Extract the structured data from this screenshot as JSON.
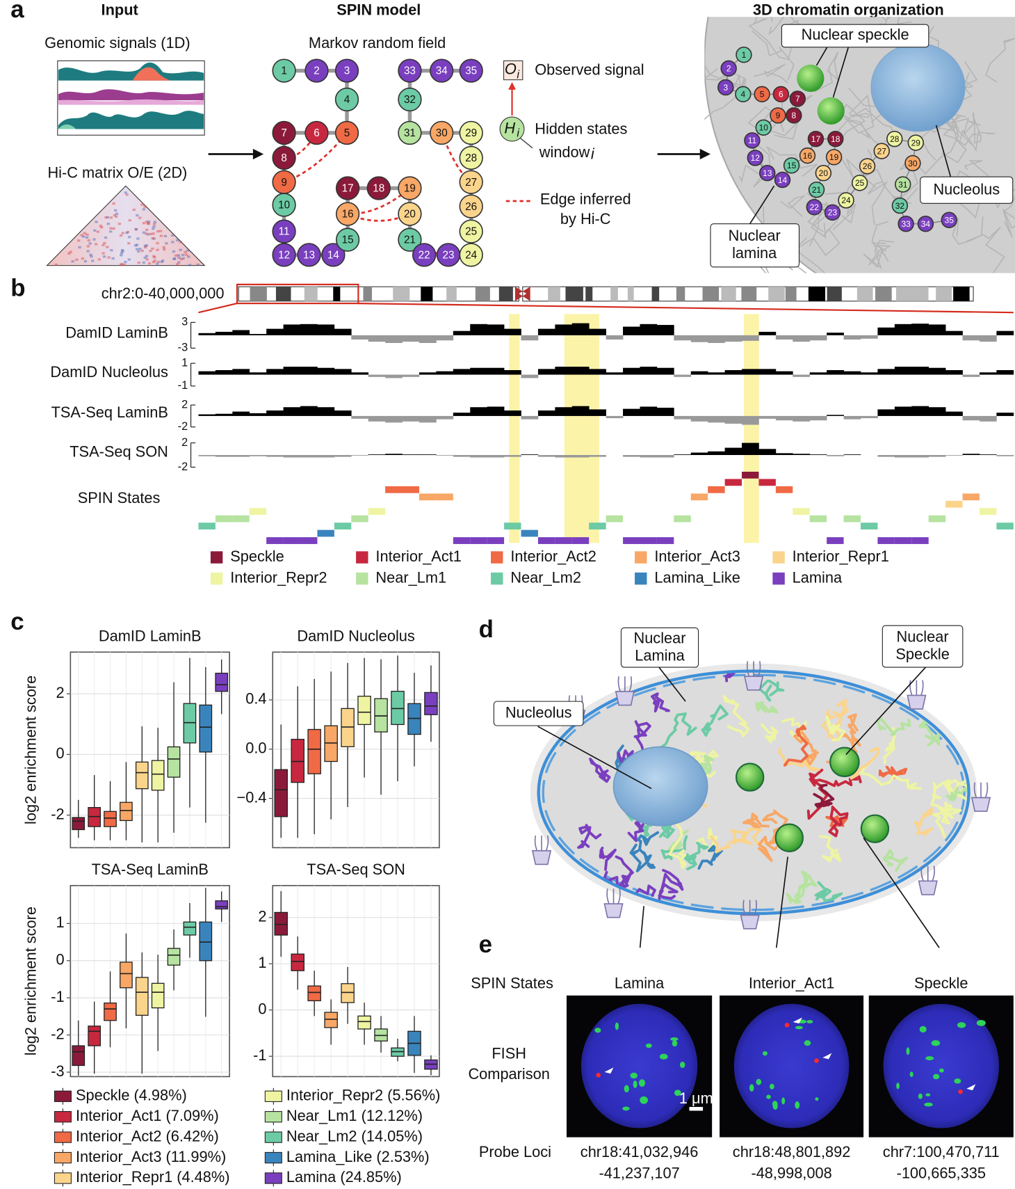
{
  "panel_labels": {
    "a": "a",
    "b": "b",
    "c": "c",
    "d": "d",
    "e": "e"
  },
  "panel_a": {
    "input_title": "Input",
    "genomic_signals": "Genomic signals (1D)",
    "hic_matrix": "Hi-C matrix O/E (2D)",
    "model_title": "SPIN model",
    "model_subtitle": "Markov random field",
    "observed_symbol": "O",
    "hidden_symbol": "H",
    "index_symbol": "i",
    "observed_label": "Observed signal",
    "hidden_label": "Hidden states",
    "window_label": "window",
    "edge_label": [
      "Edge inferred",
      "by Hi-C"
    ],
    "organization_title": "3D chromatin organization",
    "speckle_label": "Nuclear speckle",
    "nucleolus_label": "Nucleolus",
    "lamina_label": [
      "Nuclear",
      "lamina"
    ],
    "nodes": [
      {
        "label": 1,
        "color": "#6ccba5"
      },
      {
        "label": 2,
        "color": "#7a3fbf"
      },
      {
        "label": 3,
        "color": "#7a3fbf"
      },
      {
        "label": 4,
        "color": "#6ccba5"
      },
      {
        "label": 5,
        "color": "#ef6a45"
      },
      {
        "label": 6,
        "color": "#c8283f"
      },
      {
        "label": 7,
        "color": "#8b1a3a"
      },
      {
        "label": 8,
        "color": "#8b1a3a"
      },
      {
        "label": 9,
        "color": "#ef6a45"
      },
      {
        "label": 10,
        "color": "#6ccba5"
      },
      {
        "label": 11,
        "color": "#7a3fbf"
      },
      {
        "label": 12,
        "color": "#7a3fbf"
      },
      {
        "label": 13,
        "color": "#7a3fbf"
      },
      {
        "label": 14,
        "color": "#7a3fbf"
      },
      {
        "label": 15,
        "color": "#6ccba5"
      },
      {
        "label": 16,
        "color": "#f8a766"
      },
      {
        "label": 17,
        "color": "#8b1a3a"
      },
      {
        "label": 18,
        "color": "#8b1a3a"
      },
      {
        "label": 19,
        "color": "#f8a766"
      },
      {
        "label": 20,
        "color": "#fbd48c"
      },
      {
        "label": 21,
        "color": "#6ccba5"
      },
      {
        "label": 22,
        "color": "#7a3fbf"
      },
      {
        "label": 23,
        "color": "#7a3fbf"
      },
      {
        "label": 24,
        "color": "#eef4a2"
      },
      {
        "label": 25,
        "color": "#eef4a2"
      },
      {
        "label": 26,
        "color": "#fbd48c"
      },
      {
        "label": 27,
        "color": "#fbd48c"
      },
      {
        "label": 28,
        "color": "#eef4a2"
      },
      {
        "label": 29,
        "color": "#eef4a2"
      },
      {
        "label": 30,
        "color": "#f8a766"
      },
      {
        "label": 31,
        "color": "#b6e3a0"
      },
      {
        "label": 32,
        "color": "#6ccba5"
      },
      {
        "label": 33,
        "color": "#7a3fbf"
      },
      {
        "label": 34,
        "color": "#7a3fbf"
      },
      {
        "label": 35,
        "color": "#7a3fbf"
      }
    ]
  },
  "panel_b": {
    "region": "chr2:0-40,000,000",
    "states_label": "SPIN States",
    "states": [
      7,
      6,
      6,
      5,
      9,
      9,
      9,
      8,
      7,
      6,
      5,
      2,
      2,
      3,
      3,
      9,
      9,
      9,
      7,
      8,
      9,
      9,
      9,
      7,
      6,
      9,
      9,
      9,
      6,
      3,
      2,
      1,
      0,
      1,
      2,
      5,
      6,
      9,
      6,
      7,
      9,
      9,
      9,
      6,
      4,
      3,
      5,
      7
    ],
    "legend": [
      {
        "name": "Speckle",
        "color": "#8b1a3a"
      },
      {
        "name": "Interior_Act1",
        "color": "#c8283f"
      },
      {
        "name": "Interior_Act2",
        "color": "#ef6a45"
      },
      {
        "name": "Interior_Act3",
        "color": "#f8a766"
      },
      {
        "name": "Interior_Repr1",
        "color": "#fbd48c"
      },
      {
        "name": "Interior_Repr2",
        "color": "#eef4a2"
      },
      {
        "name": "Near_Lm1",
        "color": "#b6e3a0"
      },
      {
        "name": "Near_Lm2",
        "color": "#6ccba5"
      },
      {
        "name": "Lamina_Like",
        "color": "#3a84bd"
      },
      {
        "name": "Lamina",
        "color": "#7a3fbf"
      }
    ]
  },
  "chart_data": [
    {
      "type": "area",
      "title": "DamID LaminB",
      "ylim": [
        -3,
        3
      ],
      "yticks": [
        3,
        -3
      ],
      "pos_color": "#000000",
      "neg_color": "#999999",
      "values": [
        0.5,
        0.8,
        1.2,
        0.3,
        1.5,
        2.5,
        2.6,
        2.5,
        1.5,
        -1.0,
        -1.5,
        -1.8,
        -1.5,
        -1.8,
        -1.2,
        1.0,
        2.6,
        2.5,
        1.5,
        -1.2,
        1.5,
        2.5,
        2.8,
        1.5,
        -1.0,
        2.0,
        2.6,
        2.4,
        -1.2,
        -1.6,
        -1.8,
        -1.5,
        -1.3,
        0.8,
        -1.0,
        -1.5,
        -1.2,
        0.6,
        -1.0,
        -0.8,
        1.8,
        2.6,
        2.7,
        2.5,
        1.0,
        -1.2,
        -1.5,
        1.0
      ]
    },
    {
      "type": "area",
      "title": "DamID Nucleolus",
      "ylim": [
        -1,
        1
      ],
      "yticks": [
        1,
        -1
      ],
      "pos_color": "#000000",
      "neg_color": "#999999",
      "values": [
        0.3,
        0.4,
        0.5,
        0.2,
        0.5,
        0.7,
        0.7,
        0.6,
        0.5,
        0.2,
        -0.2,
        -0.3,
        -0.2,
        0.2,
        0.3,
        0.5,
        0.6,
        0.6,
        0.4,
        -0.3,
        0.5,
        0.7,
        0.7,
        0.5,
        0.2,
        0.6,
        0.7,
        0.6,
        -0.2,
        0.3,
        0.2,
        0.4,
        0.5,
        0.5,
        0.3,
        -0.2,
        0.2,
        0.4,
        0.3,
        0.2,
        0.5,
        0.7,
        0.7,
        0.6,
        0.4,
        -0.2,
        0.2,
        0.4
      ]
    },
    {
      "type": "area",
      "title": "TSA-Seq LaminB",
      "ylim": [
        -2,
        2
      ],
      "yticks": [
        2,
        -2
      ],
      "pos_color": "#000000",
      "neg_color": "#999999",
      "values": [
        0.3,
        0.4,
        0.8,
        0.5,
        1.0,
        1.6,
        1.8,
        1.6,
        1.0,
        -0.5,
        -1.0,
        -1.2,
        -1.0,
        -1.2,
        -0.6,
        0.6,
        1.6,
        1.7,
        1.0,
        -0.6,
        1.0,
        1.6,
        1.8,
        1.2,
        -0.4,
        1.3,
        1.7,
        1.5,
        -0.6,
        -1.0,
        -1.2,
        -1.4,
        -1.6,
        -0.5,
        -0.8,
        -1.0,
        -0.8,
        0.2,
        -0.6,
        -0.4,
        1.2,
        1.7,
        1.8,
        1.6,
        0.8,
        -0.8,
        -1.0,
        0.6
      ]
    },
    {
      "type": "area",
      "title": "TSA-Seq SON",
      "ylim": [
        -2,
        2
      ],
      "yticks": [
        2,
        -2
      ],
      "pos_color": "#000000",
      "neg_color": "#999999",
      "values": [
        -0.2,
        -0.3,
        -0.3,
        -0.2,
        -0.3,
        -0.4,
        -0.4,
        -0.4,
        -0.3,
        -0.1,
        0.1,
        0.2,
        0.1,
        0.1,
        -0.1,
        -0.3,
        -0.4,
        -0.4,
        -0.3,
        0.1,
        -0.3,
        -0.4,
        -0.4,
        -0.3,
        0.0,
        -0.3,
        -0.4,
        -0.4,
        0.1,
        0.4,
        0.6,
        1.2,
        2.0,
        1.0,
        0.3,
        0.2,
        0.1,
        -0.2,
        0.1,
        0.0,
        -0.3,
        -0.4,
        -0.4,
        -0.3,
        -0.1,
        0.2,
        0.1,
        -0.2
      ]
    },
    {
      "type": "box",
      "title": "DamID LaminB",
      "ylabel": "log2 enrichment score",
      "ylim": [
        -3.075,
        3.375
      ],
      "yticks": [
        -2,
        0,
        2
      ],
      "grid": true,
      "low": [
        -2.75,
        -2.83,
        -2.83,
        -2.83,
        -2.9,
        -2.9,
        -2.58,
        -1.75,
        -2.25,
        1.33
      ],
      "q1": [
        -2.48,
        -2.38,
        -2.38,
        -2.18,
        -1.13,
        -1.18,
        -0.75,
        0.38,
        0.08,
        2.08
      ],
      "median": [
        -2.2,
        -2.05,
        -2.1,
        -1.85,
        -0.6,
        -0.65,
        -0.15,
        1.05,
        0.9,
        2.3
      ],
      "q3": [
        -2.08,
        -1.75,
        -1.88,
        -1.58,
        -0.25,
        -0.2,
        0.25,
        1.68,
        1.63,
        2.68
      ],
      "high": [
        -1.5,
        -0.68,
        -0.88,
        -0.25,
        0.93,
        0.88,
        2.38,
        3.18,
        2.88,
        3.13
      ]
    },
    {
      "type": "box",
      "title": "DamID Nucleolus",
      "ylim": [
        -0.8,
        0.788
      ],
      "yticks": [
        {
          "value": -0.4,
          "label": "−0.4"
        },
        {
          "value": 0,
          "label": "0.0"
        },
        0.4
      ],
      "grid": true,
      "low": [
        -0.72,
        -0.72,
        -0.69,
        -0.57,
        -0.47,
        -0.23,
        -0.37,
        -0.26,
        -0.14,
        0.06
      ],
      "q1": [
        -0.548,
        -0.27,
        -0.2,
        -0.1,
        0.02,
        0.2,
        0.14,
        0.2,
        0.12,
        0.28
      ],
      "median": [
        -0.33,
        -0.1,
        0.0,
        0.05,
        0.18,
        0.3,
        0.27,
        0.33,
        0.25,
        0.35
      ],
      "q3": [
        -0.166,
        0.08,
        0.16,
        0.19,
        0.33,
        0.43,
        0.41,
        0.47,
        0.37,
        0.46
      ],
      "high": [
        0.2,
        0.51,
        0.57,
        0.63,
        0.7,
        0.74,
        0.73,
        0.76,
        0.62,
        0.68
      ]
    },
    {
      "type": "box",
      "title": "TSA-Seq LaminB",
      "ylabel": "log2 enrichment score",
      "ylim": [
        -3.12,
        2.02
      ],
      "yticks": [
        -3,
        -2,
        -1,
        0,
        1
      ],
      "grid": true,
      "low": [
        -3.1,
        -3.04,
        -2.33,
        -1.82,
        -3.04,
        -2.43,
        -0.8,
        0.08,
        -1.51,
        1.04
      ],
      "q1": [
        -2.82,
        -2.29,
        -1.61,
        -0.73,
        -1.47,
        -1.27,
        -0.12,
        0.69,
        0,
        1.39
      ],
      "median": [
        -2.45,
        -1.9,
        -1.3,
        -0.35,
        -0.85,
        -0.85,
        0.15,
        0.9,
        0.5,
        1.45
      ],
      "q3": [
        -2.29,
        -1.76,
        -1.14,
        -0.04,
        -0.45,
        -0.61,
        0.33,
        1.04,
        1.04,
        1.61
      ],
      "high": [
        -1.61,
        -1.1,
        -0.29,
        0.73,
        0.22,
        0.16,
        0.84,
        1.55,
        1.96,
        1.86
      ]
    },
    {
      "type": "box",
      "title": "TSA-Seq SON",
      "ylim": [
        -1.44,
        2.69
      ],
      "yticks": [
        -1,
        0,
        1,
        2
      ],
      "grid": true,
      "low": [
        1.15,
        0.44,
        -0.13,
        -0.75,
        -0.3,
        -0.75,
        -0.92,
        -1.11,
        -1.36,
        -1.41
      ],
      "q1": [
        1.62,
        0.85,
        0.2,
        -0.38,
        0.16,
        -0.41,
        -0.67,
        -1,
        -0.98,
        -1.28
      ],
      "median": [
        1.85,
        1.05,
        0.38,
        -0.2,
        0.38,
        -0.25,
        -0.55,
        -0.9,
        -0.72,
        -1.17
      ],
      "q3": [
        2.11,
        1.21,
        0.52,
        -0.05,
        0.57,
        -0.13,
        -0.41,
        -0.82,
        -0.46,
        -1.08
      ],
      "high": [
        2.57,
        1.59,
        0.85,
        0.23,
        0.93,
        0.16,
        -0.13,
        -0.62,
        -0.13,
        -0.98
      ]
    }
  ],
  "panel_c": {
    "legend": [
      "Speckle (4.98%)",
      "Interior_Act1 (7.09%)",
      "Interior_Act2 (6.42%)",
      "Interior_Act3 (11.99%)",
      "Interior_Repr1 (4.48%)",
      "Interior_Repr2 (5.56%)",
      "Near_Lm1 (12.12%)",
      "Near_Lm2 (14.05%)",
      "Lamina_Like (2.53%)",
      "Lamina (24.85%)"
    ]
  },
  "panel_d": {
    "lamina_label": [
      "Nuclear",
      "Lamina"
    ],
    "speckle_label": [
      "Nuclear",
      "Speckle"
    ],
    "nucleolus_label": "Nucleolus"
  },
  "panel_e": {
    "states_row": "SPIN States",
    "fish_row": [
      "FISH",
      "Comparison"
    ],
    "loci_row": "Probe Loci",
    "scale_bar": "1 μm",
    "columns": [
      {
        "state": "Lamina",
        "loci": [
          "chr18:41,032,946",
          "-41,237,107"
        ]
      },
      {
        "state": "Interior_Act1",
        "loci": [
          "chr18:48,801,892",
          "-48,998,008"
        ]
      },
      {
        "state": "Speckle",
        "loci": [
          "chr7:100,470,711",
          "-100,665,335"
        ]
      }
    ]
  }
}
